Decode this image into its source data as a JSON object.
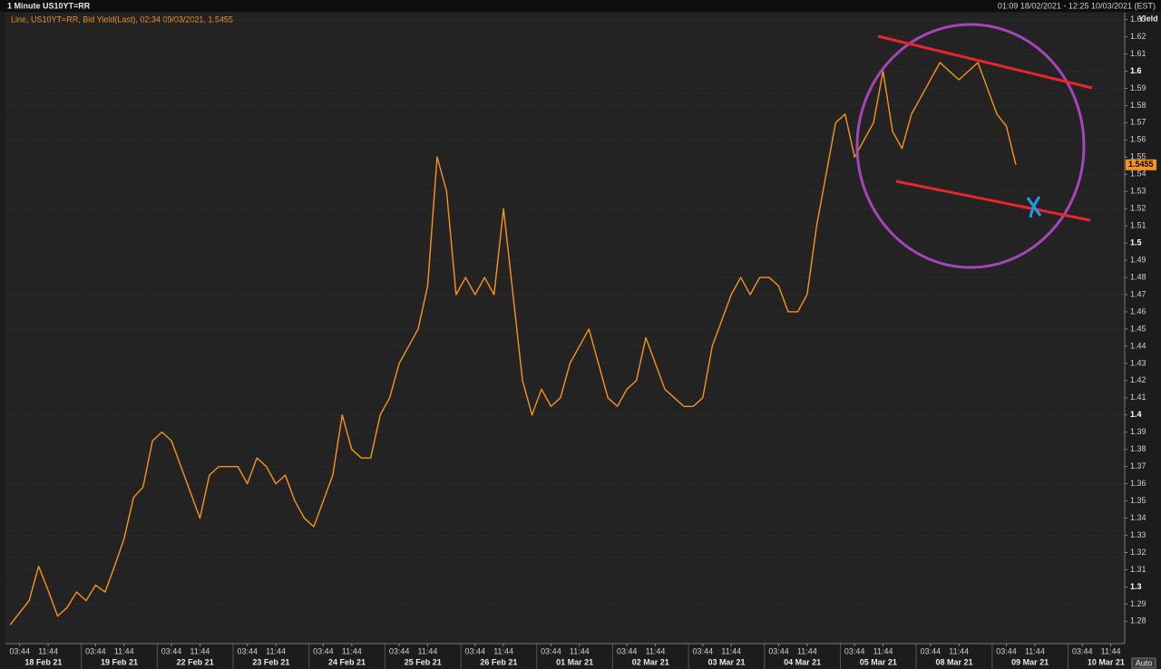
{
  "chart_data": {
    "type": "line",
    "title": "1 Minute US10YT=RR",
    "subtitle": "01:09 18/02/2021 - 12:25 10/03/2021 (EST)",
    "y_axis_label": "Yield",
    "scale_mode": "Auto",
    "grid": true,
    "ylim": [
      1.267,
      1.634
    ],
    "yticks": [
      1.28,
      1.29,
      1.3,
      1.31,
      1.32,
      1.33,
      1.34,
      1.35,
      1.36,
      1.37,
      1.38,
      1.39,
      1.4,
      1.41,
      1.42,
      1.43,
      1.44,
      1.45,
      1.46,
      1.47,
      1.48,
      1.49,
      1.5,
      1.51,
      1.52,
      1.53,
      1.54,
      1.55,
      1.56,
      1.57,
      1.58,
      1.59,
      1.6,
      1.61,
      1.62,
      1.63
    ],
    "day_labels": [
      "18 Feb 21",
      "19 Feb 21",
      "22 Feb 21",
      "23 Feb 21",
      "24 Feb 21",
      "25 Feb 21",
      "26 Feb 21",
      "01 Mar 21",
      "02 Mar 21",
      "03 Mar 21",
      "04 Mar 21",
      "05 Mar 21",
      "08 Mar 21",
      "09 Mar 21",
      "10 Mar 21"
    ],
    "categories": [
      null,
      "03:44",
      null,
      null,
      "11:44",
      null,
      null,
      null,
      null,
      "03:44",
      null,
      null,
      "11:44",
      null,
      null,
      null,
      null,
      "03:44",
      null,
      null,
      "11:44",
      null,
      null,
      null,
      null,
      "03:44",
      null,
      null,
      "11:44",
      null,
      null,
      null,
      null,
      "03:44",
      null,
      null,
      "11:44",
      null,
      null,
      null,
      null,
      "03:44",
      null,
      null,
      "11:44",
      null,
      null,
      null,
      null,
      "03:44",
      null,
      null,
      "11:44",
      null,
      null,
      null,
      null,
      "03:44",
      null,
      null,
      "11:44",
      null,
      null,
      null,
      null,
      "03:44",
      null,
      null,
      "11:44",
      null,
      null,
      null,
      null,
      "03:44",
      null,
      null,
      "11:44",
      null,
      null,
      null,
      null,
      "03:44",
      null,
      null,
      "11:44",
      null,
      null,
      null,
      null,
      "03:44",
      null,
      null,
      "11:44",
      null,
      null,
      null,
      null,
      "03:44",
      null,
      null,
      "11:44",
      null,
      null,
      null,
      null,
      "03:44",
      null,
      null,
      "11:44",
      null,
      null,
      null,
      null,
      "03:44",
      null,
      null,
      "11:44",
      null,
      null,
      null
    ],
    "series": [
      {
        "name": "Line, US10YT=RR, Bid Yield(Last), 02:34 09/03/2021, 1.5455",
        "color": "#f7941d",
        "values": [
          1.278,
          1.285,
          1.292,
          1.312,
          1.298,
          1.283,
          1.288,
          1.297,
          1.292,
          1.301,
          1.297,
          1.312,
          1.328,
          1.352,
          1.358,
          1.385,
          1.39,
          1.385,
          1.37,
          1.355,
          1.34,
          1.365,
          1.37,
          1.37,
          1.37,
          1.36,
          1.375,
          1.37,
          1.36,
          1.365,
          1.35,
          1.34,
          1.335,
          1.35,
          1.365,
          1.4,
          1.38,
          1.375,
          1.375,
          1.4,
          1.41,
          1.43,
          1.44,
          1.45,
          1.475,
          1.55,
          1.53,
          1.47,
          1.48,
          1.47,
          1.48,
          1.47,
          1.52,
          1.47,
          1.42,
          1.4,
          1.415,
          1.405,
          1.41,
          1.43,
          1.44,
          1.45,
          1.43,
          1.41,
          1.405,
          1.415,
          1.42,
          1.445,
          1.43,
          1.415,
          1.41,
          1.405,
          1.405,
          1.41,
          1.44,
          1.455,
          1.47,
          1.48,
          1.47,
          1.48,
          1.48,
          1.475,
          1.46,
          1.46,
          1.47,
          1.51,
          1.54,
          1.57,
          1.575,
          1.55,
          1.56,
          1.57,
          1.6,
          1.565,
          1.555,
          1.575,
          1.585,
          1.595,
          1.605,
          1.6,
          1.595,
          1.6,
          1.605,
          1.59,
          1.575,
          1.568,
          1.5455,
          null,
          null,
          null,
          null,
          null,
          null,
          null,
          null,
          null,
          null,
          null,
          null,
          null
        ]
      }
    ]
  }
}
